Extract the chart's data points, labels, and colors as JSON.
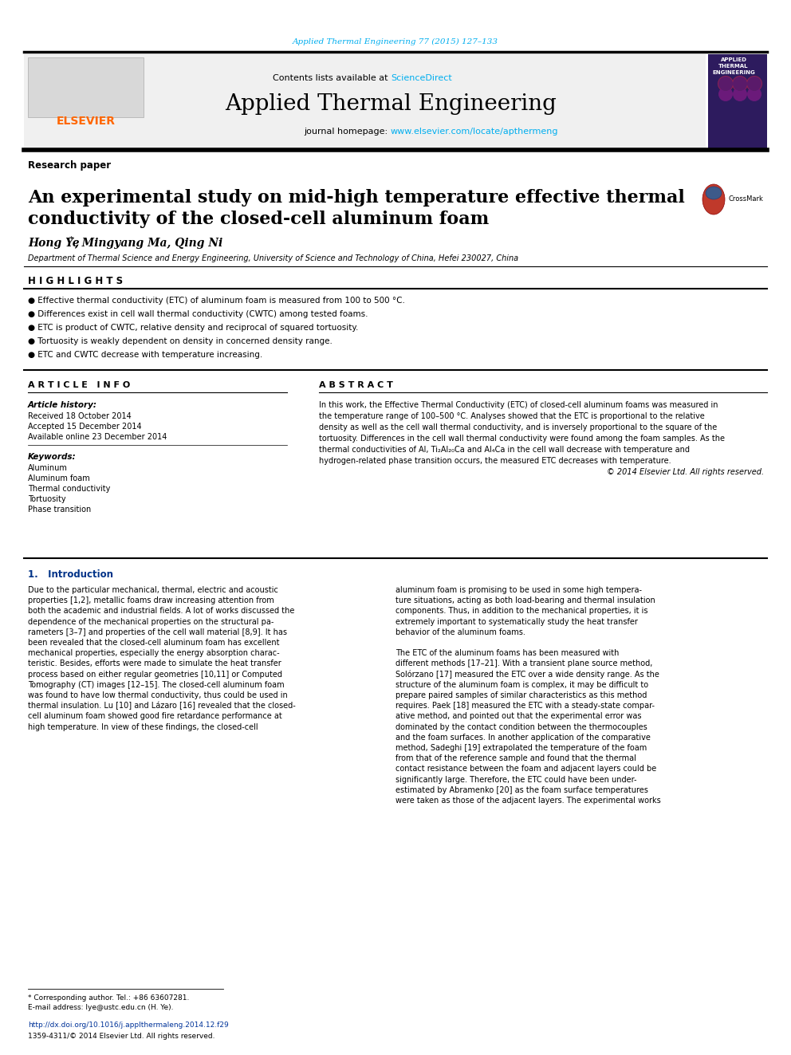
{
  "journal_ref": "Applied Thermal Engineering 77 (2015) 127–133",
  "journal_ref_color": "#00AEEF",
  "header_bg": "#f0f0f0",
  "journal_name": "Applied Thermal Engineering",
  "contents_text": "Contents lists available at ",
  "sciencedirect_text": "ScienceDirect",
  "sciencedirect_color": "#00AEEF",
  "journal_homepage_text": "journal homepage: ",
  "journal_url": "www.elsevier.com/locate/apthermeng",
  "journal_url_color": "#00AEEF",
  "section_label": "Research paper",
  "paper_title_line1": "An experimental study on mid-high temperature effective thermal",
  "paper_title_line2": "conductivity of the closed-cell aluminum foam",
  "authors": "Hong Ye*, Mingyang Ma, Qing Ni",
  "affiliation": "Department of Thermal Science and Energy Engineering, University of Science and Technology of China, Hefei 230027, China",
  "highlights_title": "H I G H L I G H T S",
  "highlights": [
    "Effective thermal conductivity (ETC) of aluminum foam is measured from 100 to 500 °C.",
    "Differences exist in cell wall thermal conductivity (CWTC) among tested foams.",
    "ETC is product of CWTC, relative density and reciprocal of squared tortuosity.",
    "Tortuosity is weakly dependent on density in concerned density range.",
    "ETC and CWTC decrease with temperature increasing."
  ],
  "article_info_title": "A R T I C L E   I N F O",
  "article_history_title": "Article history:",
  "received": "Received 18 October 2014",
  "accepted": "Accepted 15 December 2014",
  "available": "Available online 23 December 2014",
  "keywords_title": "Keywords:",
  "keywords": [
    "Aluminum",
    "Aluminum foam",
    "Thermal conductivity",
    "Tortuosity",
    "Phase transition"
  ],
  "abstract_title": "A B S T R A C T",
  "abstract_lines": [
    "In this work, the Effective Thermal Conductivity (ETC) of closed-cell aluminum foams was measured in",
    "the temperature range of 100–500 °C. Analyses showed that the ETC is proportional to the relative",
    "density as well as the cell wall thermal conductivity, and is inversely proportional to the square of the",
    "tortuosity. Differences in the cell wall thermal conductivity were found among the foam samples. As the",
    "thermal conductivities of Al, Ti₂Al₂₀Ca and Al₄Ca in the cell wall decrease with temperature and",
    "hydrogen-related phase transition occurs, the measured ETC decreases with temperature.",
    "© 2014 Elsevier Ltd. All rights reserved."
  ],
  "intro_title": "1.   Introduction",
  "intro_col1_lines": [
    "Due to the particular mechanical, thermal, electric and acoustic",
    "properties [1,2], metallic foams draw increasing attention from",
    "both the academic and industrial fields. A lot of works discussed the",
    "dependence of the mechanical properties on the structural pa-",
    "rameters [3–7] and properties of the cell wall material [8,9]. It has",
    "been revealed that the closed-cell aluminum foam has excellent",
    "mechanical properties, especially the energy absorption charac-",
    "teristic. Besides, efforts were made to simulate the heat transfer",
    "process based on either regular geometries [10,11] or Computed",
    "Tomography (CT) images [12–15]. The closed-cell aluminum foam",
    "was found to have low thermal conductivity, thus could be used in",
    "thermal insulation. Lu [10] and Lázaro [16] revealed that the closed-",
    "cell aluminum foam showed good fire retardance performance at",
    "high temperature. In view of these findings, the closed-cell"
  ],
  "intro_col2_lines": [
    "aluminum foam is promising to be used in some high tempera-",
    "ture situations, acting as both load-bearing and thermal insulation",
    "components. Thus, in addition to the mechanical properties, it is",
    "extremely important to systematically study the heat transfer",
    "behavior of the aluminum foams.",
    "",
    "The ETC of the aluminum foams has been measured with",
    "different methods [17–21]. With a transient plane source method,",
    "Solórzano [17] measured the ETC over a wide density range. As the",
    "structure of the aluminum foam is complex, it may be difficult to",
    "prepare paired samples of similar characteristics as this method",
    "requires. Paek [18] measured the ETC with a steady-state compar-",
    "ative method, and pointed out that the experimental error was",
    "dominated by the contact condition between the thermocouples",
    "and the foam surfaces. In another application of the comparative",
    "method, Sadeghi [19] extrapolated the temperature of the foam",
    "from that of the reference sample and found that the thermal",
    "contact resistance between the foam and adjacent layers could be",
    "significantly large. Therefore, the ETC could have been under-",
    "estimated by Abramenko [20] as the foam surface temperatures",
    "were taken as those of the adjacent layers. The experimental works"
  ],
  "footnote1": "* Corresponding author. Tel.: +86 63607281.",
  "footnote2": "E-mail address: lye@ustc.edu.cn (H. Ye).",
  "doi_text": "http://dx.doi.org/10.1016/j.applthermaleng.2014.12.f29",
  "issn_text": "1359-4311/© 2014 Elsevier Ltd. All rights reserved.",
  "bg_color": "#ffffff",
  "text_color": "#000000"
}
